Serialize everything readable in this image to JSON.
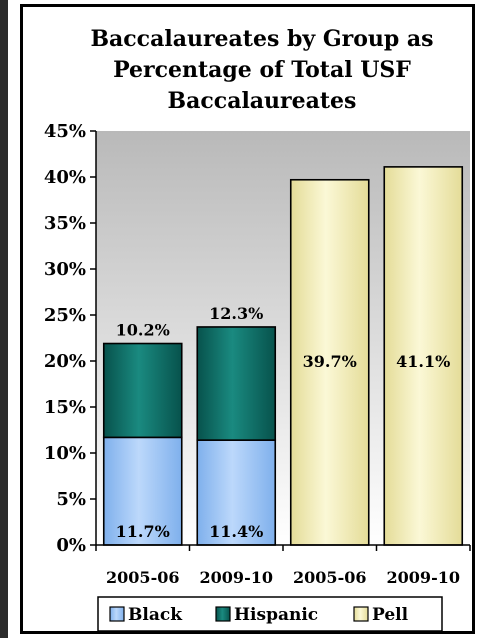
{
  "chart_data": {
    "type": "bar",
    "stacked": true,
    "title": "Baccalaureates by Group as Percentage of Total USF Baccalaureates",
    "title_lines": [
      "Baccalaureates by Group as",
      "Percentage of Total USF",
      "Baccalaureates"
    ],
    "categories": [
      "2005-06",
      "2009-10",
      "2005-06",
      "2009-10"
    ],
    "series": [
      {
        "name": "Black",
        "values": [
          11.7,
          11.4,
          null,
          null
        ],
        "labels": [
          "11.7%",
          "11.4%",
          "",
          ""
        ],
        "color": "#9dc3f5"
      },
      {
        "name": "Hispanic",
        "values": [
          10.2,
          12.3,
          null,
          null
        ],
        "labels": [
          "10.2%",
          "12.3%",
          "",
          ""
        ],
        "color": "#0b6e66"
      },
      {
        "name": "Pell",
        "values": [
          null,
          null,
          39.7,
          41.1
        ],
        "labels": [
          "",
          "",
          "39.7%",
          "41.1%"
        ],
        "color": "#f7f3c2"
      }
    ],
    "ylim": [
      0,
      45
    ],
    "yticks": [
      0,
      5,
      10,
      15,
      20,
      25,
      30,
      35,
      40,
      45
    ],
    "ytick_labels": [
      "0%",
      "5%",
      "10%",
      "15%",
      "20%",
      "25%",
      "30%",
      "35%",
      "40%",
      "45%"
    ],
    "xlabel": "",
    "ylabel": "",
    "grid": false,
    "legend": "bottom",
    "plot_background": "#c0c0c0"
  }
}
